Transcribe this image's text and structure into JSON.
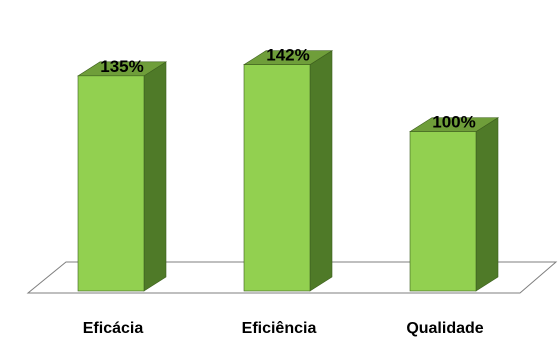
{
  "chart_data": {
    "type": "bar",
    "categories": [
      "Eficácia",
      "Eficiência",
      "Qualidade"
    ],
    "values": [
      135,
      142,
      100
    ],
    "data_labels": [
      "135%",
      "142%",
      "100%"
    ],
    "title": "",
    "xlabel": "",
    "ylabel": "",
    "ylim": [
      0,
      160
    ],
    "grid": false,
    "legend": "none",
    "colors": {
      "front": "#92d050",
      "side": "#4f7a28",
      "top": "#6f9e3a",
      "edge": "#3d5f1e",
      "floor_edge": "#7f7f7f"
    }
  }
}
